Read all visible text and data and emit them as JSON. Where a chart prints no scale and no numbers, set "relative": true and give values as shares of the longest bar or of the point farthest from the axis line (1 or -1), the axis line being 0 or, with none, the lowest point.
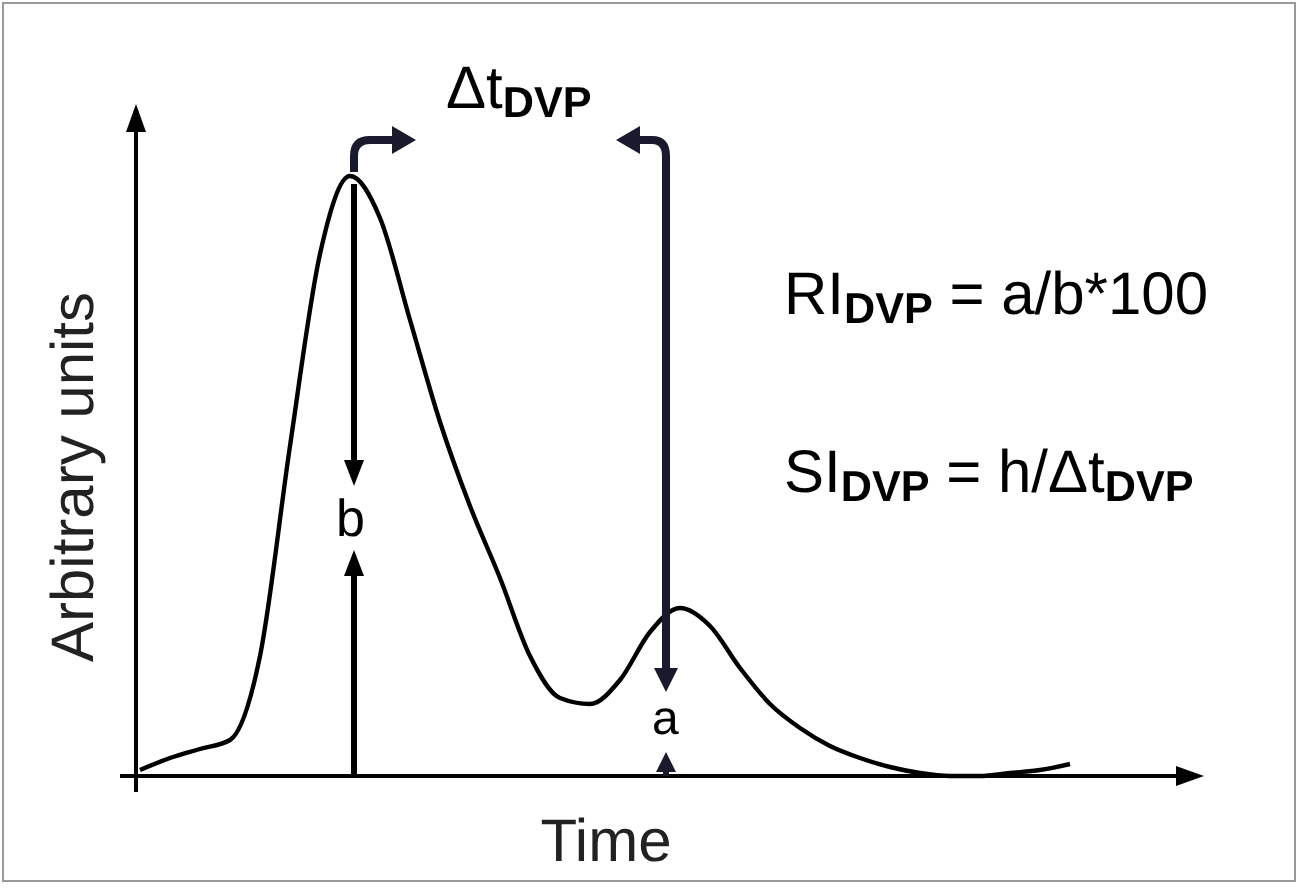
{
  "chart_data": {
    "type": "line",
    "relative": true,
    "xlabel": "Time",
    "ylabel": "Arbitrary units",
    "color": "#000000",
    "line_style": "solid",
    "categories": [
      null,
      null,
      null,
      null,
      null,
      null,
      null,
      null,
      null,
      null,
      null,
      null,
      null,
      null,
      null,
      null,
      null,
      null,
      null,
      null,
      null,
      null,
      null,
      null,
      null,
      null,
      null,
      null,
      null,
      null,
      null,
      null
    ],
    "values": [
      0.01,
      0.03,
      0.045,
      0.06,
      0.2,
      0.55,
      0.87,
      1.0,
      0.93,
      0.76,
      0.59,
      0.45,
      0.33,
      0.2,
      0.13,
      0.12,
      0.16,
      0.24,
      0.28,
      0.25,
      0.18,
      0.12,
      0.08,
      0.05,
      0.03,
      0.015,
      0.005,
      0,
      0,
      0.005,
      0.01,
      0.02
    ],
    "annotations": [
      "Δt$_{DVP}$",
      "RI$_{DVP}$ = a/b*100",
      "SI$_{DVP}$ = h/Δt$_{DVP}$",
      "b",
      "a"
    ]
  }
}
